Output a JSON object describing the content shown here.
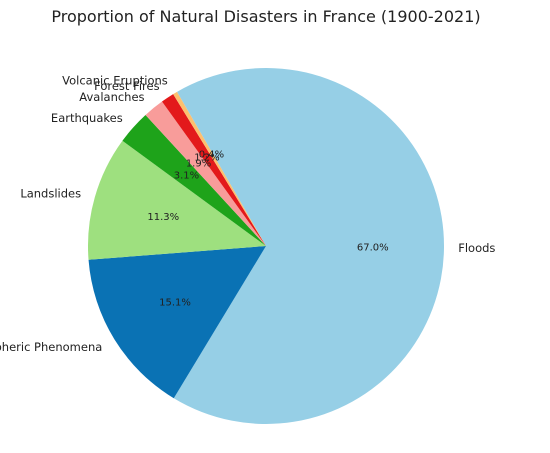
{
  "chart_data": {
    "type": "pie",
    "title": "Proportion of Natural Disasters in France (1900-2021)",
    "start_angle_deg": 120,
    "direction": "clockwise",
    "slices": [
      {
        "label": "Floods",
        "value": 67.0,
        "pct_label": "67.0%",
        "color": "#96cfe6"
      },
      {
        "label": "Atmospheric Phenomena",
        "value": 15.1,
        "pct_label": "15.1%",
        "color": "#0a72b4"
      },
      {
        "label": "Landslides",
        "value": 11.3,
        "pct_label": "11.3%",
        "color": "#9ee07f"
      },
      {
        "label": "Earthquakes",
        "value": 3.1,
        "pct_label": "3.1%",
        "color": "#1ea31a"
      },
      {
        "label": "Avalanches",
        "value": 1.9,
        "pct_label": "1.9%",
        "color": "#f89c9a"
      },
      {
        "label": "Forest Fires",
        "value": 1.2,
        "pct_label": "1.2%",
        "color": "#e3191b"
      },
      {
        "label": "Volcanic Eruptions",
        "value": 0.4,
        "pct_label": "0.4%",
        "color": "#fdbf6f"
      }
    ]
  }
}
